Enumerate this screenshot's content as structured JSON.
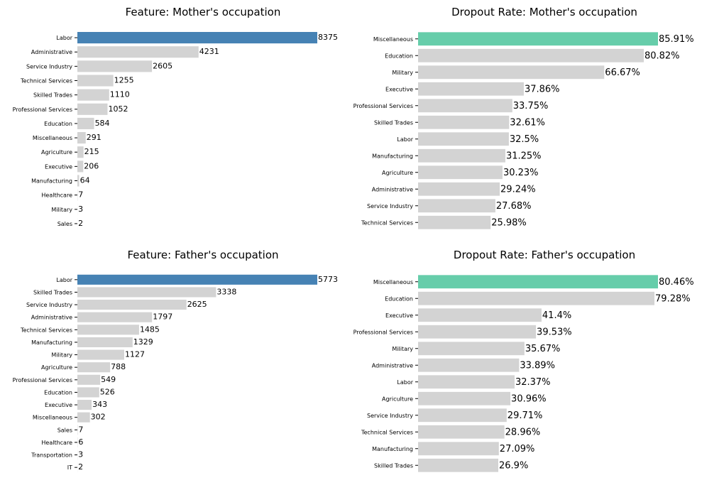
{
  "colors": {
    "bar": "#d3d3d3",
    "highlight_feature": "#4682b4",
    "highlight_rate": "#66cdaa",
    "tick": "#000000"
  },
  "chart_data": [
    {
      "type": "bar",
      "orientation": "horizontal",
      "title": "Feature: Mother's occupation",
      "categories": [
        "Labor",
        "Administrative",
        "Service Industry",
        "Technical Services",
        "Skilled Trades",
        "Professional Services",
        "Education",
        "Miscellaneous",
        "Agriculture",
        "Executive",
        "Manufacturing",
        "Healthcare",
        "Military",
        "Sales"
      ],
      "values": [
        8375,
        4231,
        2605,
        1255,
        1110,
        1052,
        584,
        291,
        215,
        206,
        64,
        7,
        3,
        2
      ],
      "labels": [
        "8375",
        "4231",
        "2605",
        "1255",
        "1110",
        "1052",
        "584",
        "291",
        "215",
        "206",
        "64",
        "7",
        "3",
        "2"
      ],
      "highlight_index": 0,
      "highlight": "feature",
      "xlim": [
        0,
        8375
      ]
    },
    {
      "type": "bar",
      "orientation": "horizontal",
      "title": "Dropout Rate: Mother's occupation",
      "categories": [
        "Miscellaneous",
        "Education",
        "Military",
        "Executive",
        "Professional Services",
        "Skilled Trades",
        "Labor",
        "Manufacturing",
        "Agriculture",
        "Administrative",
        "Service Industry",
        "Technical Services"
      ],
      "values": [
        85.91,
        80.82,
        66.67,
        37.86,
        33.75,
        32.61,
        32.5,
        31.25,
        30.23,
        29.24,
        27.68,
        25.98
      ],
      "labels": [
        "85.91%",
        "80.82%",
        "66.67%",
        "37.86%",
        "33.75%",
        "32.61%",
        "32.5%",
        "31.25%",
        "30.23%",
        "29.24%",
        "27.68%",
        "25.98%"
      ],
      "highlight_index": 0,
      "highlight": "rate",
      "xlim": [
        0,
        85.91
      ]
    },
    {
      "type": "bar",
      "orientation": "horizontal",
      "title": "Feature: Father's occupation",
      "categories": [
        "Labor",
        "Skilled Trades",
        "Service Industry",
        "Administrative",
        "Technical Services",
        "Manufacturing",
        "Military",
        "Agriculture",
        "Professional Services",
        "Education",
        "Executive",
        "Miscellaneous",
        "Sales",
        "Healthcare",
        "Transportation",
        "IT"
      ],
      "values": [
        5773,
        3338,
        2625,
        1797,
        1485,
        1329,
        1127,
        788,
        549,
        526,
        343,
        302,
        7,
        6,
        3,
        2
      ],
      "labels": [
        "5773",
        "3338",
        "2625",
        "1797",
        "1485",
        "1329",
        "1127",
        "788",
        "549",
        "526",
        "343",
        "302",
        "7",
        "6",
        "3",
        "2"
      ],
      "highlight_index": 0,
      "highlight": "feature",
      "xlim": [
        0,
        5773
      ]
    },
    {
      "type": "bar",
      "orientation": "horizontal",
      "title": "Dropout Rate: Father's occupation",
      "categories": [
        "Miscellaneous",
        "Education",
        "Executive",
        "Professional Services",
        "Military",
        "Administrative",
        "Labor",
        "Agriculture",
        "Service Industry",
        "Technical Services",
        "Manufacturing",
        "Skilled Trades"
      ],
      "values": [
        80.46,
        79.28,
        41.4,
        39.53,
        35.67,
        33.89,
        32.37,
        30.96,
        29.71,
        28.96,
        27.09,
        26.9
      ],
      "labels": [
        "80.46%",
        "79.28%",
        "41.4%",
        "39.53%",
        "35.67%",
        "33.89%",
        "32.37%",
        "30.96%",
        "29.71%",
        "28.96%",
        "27.09%",
        "26.9%"
      ],
      "highlight_index": 0,
      "highlight": "rate",
      "xlim": [
        0,
        80.46
      ]
    }
  ]
}
